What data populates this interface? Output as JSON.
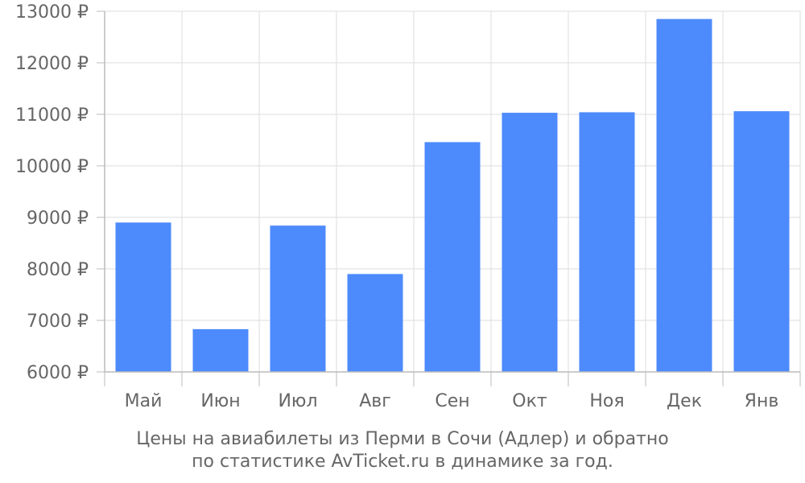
{
  "chart_data": {
    "type": "bar",
    "categories": [
      "Май",
      "Июн",
      "Июл",
      "Авг",
      "Сен",
      "Окт",
      "Ноя",
      "Дек",
      "Янв"
    ],
    "values": [
      8900,
      6830,
      8840,
      7900,
      10460,
      11030,
      11040,
      12850,
      11060
    ],
    "y_ticks": [
      "6000 ₽",
      "7000 ₽",
      "8000 ₽",
      "9000 ₽",
      "10000 ₽",
      "11000 ₽",
      "12000 ₽",
      "13000 ₽"
    ],
    "ylim": [
      6000,
      13000
    ],
    "grid": true,
    "bar_color": "#4d8afc",
    "caption_lines": [
      "Цены на авиабилеты из Перми в Сочи (Адлер) и обратно",
      "по статистике AvTicket.ru в динамике за год."
    ]
  }
}
